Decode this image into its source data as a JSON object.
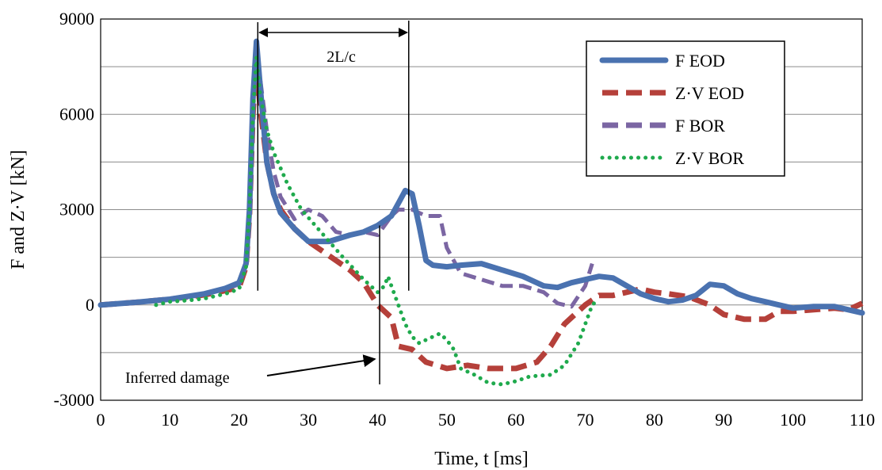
{
  "chart_data": {
    "type": "line",
    "xlabel": "Time, t [ms]",
    "ylabel": "F and Z·V [kN]",
    "xlim": [
      0,
      110
    ],
    "ylim": [
      -3000,
      9000
    ],
    "x_ticks": [
      "0",
      "10",
      "20",
      "30",
      "40",
      "50",
      "60",
      "70",
      "80",
      "90",
      "100",
      "110"
    ],
    "y_ticks": [
      "-3000",
      "0",
      "3000",
      "6000",
      "9000"
    ],
    "grid": "horizontal",
    "legend_position": "top-right",
    "series": [
      {
        "name": "F EOD",
        "color": "#4a72b0",
        "style": "solid",
        "points": [
          [
            0,
            0
          ],
          [
            5,
            80
          ],
          [
            10,
            180
          ],
          [
            15,
            350
          ],
          [
            18,
            520
          ],
          [
            20,
            700
          ],
          [
            21,
            1300
          ],
          [
            21.5,
            3000
          ],
          [
            22,
            6500
          ],
          [
            22.5,
            8300
          ],
          [
            23,
            7000
          ],
          [
            24,
            4500
          ],
          [
            25,
            3500
          ],
          [
            26,
            2900
          ],
          [
            28,
            2400
          ],
          [
            30,
            2000
          ],
          [
            33,
            2000
          ],
          [
            36,
            2200
          ],
          [
            38,
            2300
          ],
          [
            40,
            2500
          ],
          [
            42,
            2800
          ],
          [
            43,
            3200
          ],
          [
            44,
            3600
          ],
          [
            45,
            3500
          ],
          [
            46,
            2500
          ],
          [
            47,
            1400
          ],
          [
            48,
            1250
          ],
          [
            50,
            1200
          ],
          [
            52,
            1250
          ],
          [
            55,
            1300
          ],
          [
            58,
            1100
          ],
          [
            61,
            900
          ],
          [
            64,
            600
          ],
          [
            66,
            550
          ],
          [
            68,
            700
          ],
          [
            70,
            800
          ],
          [
            72,
            900
          ],
          [
            74,
            850
          ],
          [
            76,
            600
          ],
          [
            78,
            350
          ],
          [
            80,
            200
          ],
          [
            82,
            100
          ],
          [
            84,
            150
          ],
          [
            86,
            300
          ],
          [
            88,
            650
          ],
          [
            90,
            600
          ],
          [
            92,
            350
          ],
          [
            94,
            200
          ],
          [
            96,
            100
          ],
          [
            98,
            0
          ],
          [
            100,
            -100
          ],
          [
            103,
            -50
          ],
          [
            106,
            -50
          ],
          [
            108,
            -150
          ],
          [
            110,
            -250
          ]
        ]
      },
      {
        "name": "Z·V EOD",
        "color": "#b5403a",
        "style": "dash",
        "points": [
          [
            0,
            0
          ],
          [
            5,
            80
          ],
          [
            10,
            180
          ],
          [
            15,
            320
          ],
          [
            18,
            450
          ],
          [
            20,
            550
          ],
          [
            21,
            1200
          ],
          [
            21.5,
            2800
          ],
          [
            22,
            6000
          ],
          [
            22.5,
            7800
          ],
          [
            23,
            6300
          ],
          [
            24,
            4500
          ],
          [
            25,
            3500
          ],
          [
            26,
            3000
          ],
          [
            28,
            2400
          ],
          [
            30,
            2000
          ],
          [
            32,
            1700
          ],
          [
            34,
            1400
          ],
          [
            36,
            1100
          ],
          [
            38,
            700
          ],
          [
            40,
            0
          ],
          [
            42,
            -400
          ],
          [
            43,
            -1300
          ],
          [
            45,
            -1400
          ],
          [
            47,
            -1800
          ],
          [
            50,
            -2000
          ],
          [
            53,
            -1900
          ],
          [
            56,
            -2000
          ],
          [
            60,
            -2000
          ],
          [
            63,
            -1800
          ],
          [
            65,
            -1300
          ],
          [
            67,
            -600
          ],
          [
            70,
            0
          ],
          [
            72,
            300
          ],
          [
            74,
            300
          ],
          [
            76,
            400
          ],
          [
            78,
            500
          ],
          [
            80,
            400
          ],
          [
            82,
            350
          ],
          [
            85,
            250
          ],
          [
            88,
            0
          ],
          [
            90,
            -300
          ],
          [
            93,
            -450
          ],
          [
            96,
            -450
          ],
          [
            98,
            -200
          ],
          [
            100,
            -200
          ],
          [
            103,
            -150
          ],
          [
            106,
            -100
          ],
          [
            108,
            -150
          ],
          [
            110,
            50
          ]
        ]
      },
      {
        "name": "F BOR",
        "color": "#7b66a3",
        "style": "dash",
        "points": [
          [
            0,
            0
          ],
          [
            5,
            80
          ],
          [
            10,
            180
          ],
          [
            15,
            350
          ],
          [
            18,
            500
          ],
          [
            20,
            650
          ],
          [
            21,
            1300
          ],
          [
            21.5,
            3000
          ],
          [
            22,
            6500
          ],
          [
            22.5,
            8200
          ],
          [
            23,
            7200
          ],
          [
            24,
            5500
          ],
          [
            25,
            4200
          ],
          [
            26,
            3400
          ],
          [
            28,
            2700
          ],
          [
            30,
            3000
          ],
          [
            32,
            2800
          ],
          [
            34,
            2300
          ],
          [
            36,
            2200
          ],
          [
            38,
            2300
          ],
          [
            40,
            2200
          ],
          [
            42,
            2800
          ],
          [
            43,
            3000
          ],
          [
            45,
            3000
          ],
          [
            47,
            2800
          ],
          [
            49,
            2800
          ],
          [
            50,
            1800
          ],
          [
            52,
            1000
          ],
          [
            55,
            800
          ],
          [
            58,
            600
          ],
          [
            61,
            600
          ],
          [
            64,
            400
          ],
          [
            66,
            50
          ],
          [
            68,
            -50
          ],
          [
            70,
            600
          ],
          [
            71,
            1300
          ]
        ]
      },
      {
        "name": "Z·V BOR",
        "color": "#1faa4d",
        "style": "dot",
        "points": [
          [
            8,
            0
          ],
          [
            10,
            100
          ],
          [
            13,
            150
          ],
          [
            15,
            200
          ],
          [
            18,
            350
          ],
          [
            20,
            500
          ],
          [
            21,
            1200
          ],
          [
            21.5,
            3000
          ],
          [
            22,
            6000
          ],
          [
            22.5,
            7800
          ],
          [
            23,
            6700
          ],
          [
            24,
            5500
          ],
          [
            25,
            4800
          ],
          [
            27,
            3800
          ],
          [
            29,
            3000
          ],
          [
            31,
            2500
          ],
          [
            33,
            2000
          ],
          [
            35,
            1500
          ],
          [
            38,
            800
          ],
          [
            40,
            400
          ],
          [
            41,
            600
          ],
          [
            41.5,
            900
          ],
          [
            42,
            600
          ],
          [
            43,
            0
          ],
          [
            44,
            -600
          ],
          [
            45,
            -1000
          ],
          [
            46,
            -1200
          ],
          [
            48,
            -1000
          ],
          [
            49,
            -900
          ],
          [
            50,
            -1100
          ],
          [
            51,
            -1400
          ],
          [
            52,
            -2000
          ],
          [
            54,
            -2200
          ],
          [
            56,
            -2450
          ],
          [
            58,
            -2500
          ],
          [
            60,
            -2400
          ],
          [
            62,
            -2250
          ],
          [
            65,
            -2200
          ],
          [
            67,
            -1900
          ],
          [
            69,
            -1200
          ],
          [
            71,
            0
          ],
          [
            72,
            200
          ]
        ]
      }
    ],
    "annotations": {
      "span_label": "2L/c",
      "span_start_x": 22.7,
      "span_end_x": 44.5,
      "damage_label": "Inferred damage",
      "damage_x": 40.3
    }
  }
}
